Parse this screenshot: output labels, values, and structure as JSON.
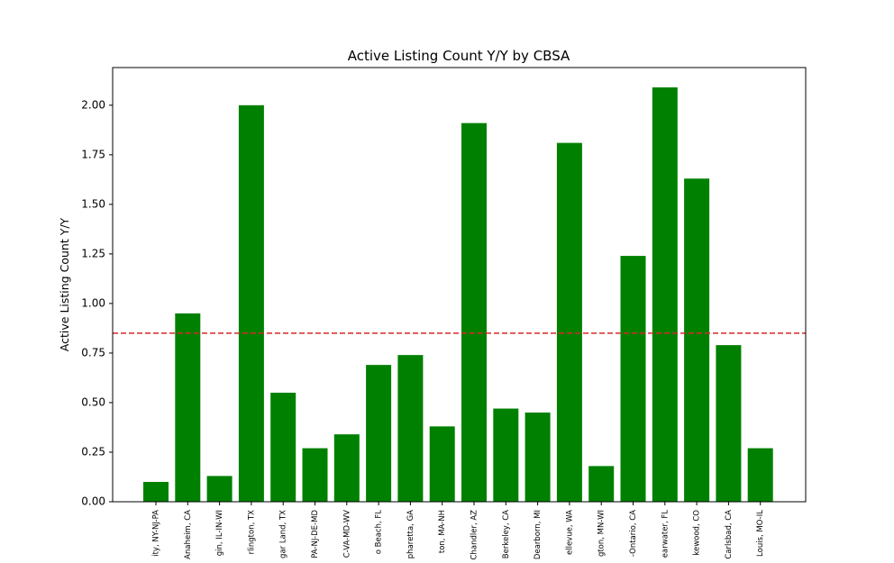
{
  "chart_data": {
    "type": "bar",
    "title": "Active Listing Count Y/Y by CBSA",
    "xlabel": "",
    "ylabel": "Active Listing Count Y/Y",
    "ylim": [
      0,
      2.19
    ],
    "yticks": [
      0.0,
      0.25,
      0.5,
      0.75,
      1.0,
      1.25,
      1.5,
      1.75,
      2.0
    ],
    "ytick_labels": [
      "0.00",
      "0.25",
      "0.50",
      "0.75",
      "1.00",
      "1.25",
      "1.50",
      "1.75",
      "2.00"
    ],
    "categories": [
      "ity, NY-NJ-PA",
      "Anaheim, CA",
      "gin, IL-IN-WI",
      "rlington, TX",
      "gar Land, TX",
      "PA-NJ-DE-MD",
      "C-VA-MD-WV",
      "o Beach, FL",
      "pharetta, GA",
      "ton, MA-NH",
      "Chandler, AZ",
      "Berkeley, CA",
      "Dearborn, MI",
      "ellevue, WA",
      "gton, MN-WI",
      "-Ontario, CA",
      "earwater, FL",
      "kewood, CO",
      "Carlsbad, CA",
      "Louis, MO-IL"
    ],
    "values": [
      0.1,
      0.95,
      0.13,
      2.0,
      0.55,
      0.27,
      0.34,
      0.69,
      0.74,
      0.38,
      1.91,
      0.47,
      0.45,
      1.81,
      0.18,
      1.24,
      2.09,
      1.63,
      0.79,
      0.27
    ],
    "reference_line": {
      "value": 0.85,
      "style": "dashed",
      "color": "#d62728"
    },
    "bar_color": "#008000",
    "grid": false,
    "legend": "none"
  }
}
